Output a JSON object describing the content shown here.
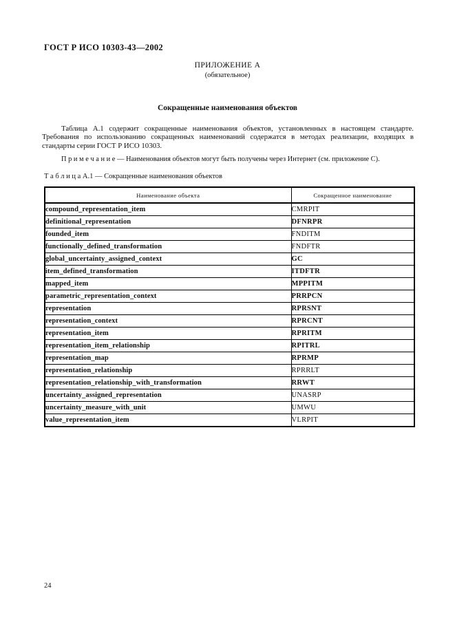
{
  "document": {
    "header": "ГОСТ Р ИСО 10303-43—2002",
    "appendix": {
      "title": "ПРИЛОЖЕНИЕ А",
      "subtitle": "(обязательное)"
    },
    "section_title": "Сокращенные наименования объектов",
    "intro_paragraph": "Таблица А.1 содержит сокращенные наименования объектов, установленных в настоящем стандарте. Требования по использованию сокращенных наименований содержатся в методах реализации, входящих в стандарты серии ГОСТ Р ИСО 10303.",
    "note": "П р и м е ч а н и е — Наименования объектов могут быть получены через Интернет (см. приложение С).",
    "table_caption": "Т а б л и ц а А.1 — Сокращенные наименования объектов",
    "page_number": "24"
  },
  "table": {
    "headers": [
      "Наименование объекта",
      "Сокращенное наименование"
    ],
    "rows": [
      {
        "name": "compound_representation_item",
        "abbr": "CMRPIT",
        "abbr_bold": false
      },
      {
        "name": "definitional_representation",
        "abbr": "DFNRPR",
        "abbr_bold": true
      },
      {
        "name": "founded_item",
        "abbr": "FNDITM",
        "abbr_bold": false
      },
      {
        "name": "functionally_defined_transformation",
        "abbr": "FNDFTR",
        "abbr_bold": false
      },
      {
        "name": "global_uncertainty_assigned_context",
        "abbr": "GC",
        "abbr_bold": true
      },
      {
        "name": "item_defined_transformation",
        "abbr": "ITDFTR",
        "abbr_bold": true
      },
      {
        "name": "mapped_item",
        "abbr": "MPPITM",
        "abbr_bold": true
      },
      {
        "name": "parametric_representation_context",
        "abbr": "PRRPCN",
        "abbr_bold": true
      },
      {
        "name": "representation",
        "abbr": "RPRSNT",
        "abbr_bold": true
      },
      {
        "name": "representation_context",
        "abbr": "RPRCNT",
        "abbr_bold": true
      },
      {
        "name": "representation_item",
        "abbr": "RPRITM",
        "abbr_bold": true
      },
      {
        "name": "representation_item_relationship",
        "abbr": "RPITRL",
        "abbr_bold": true
      },
      {
        "name": "representation_map",
        "abbr": "RPRMP",
        "abbr_bold": true
      },
      {
        "name": "representation_relationship",
        "abbr": "RPRRLT",
        "abbr_bold": false
      },
      {
        "name": "representation_relationship_with_transformation",
        "abbr": "RRWT",
        "abbr_bold": true
      },
      {
        "name": "uncertainty_assigned_representation",
        "abbr": "UNASRP",
        "abbr_bold": false
      },
      {
        "name": "uncertainty_measure_with_unit",
        "abbr": "UMWU",
        "abbr_bold": false
      },
      {
        "name": "value_representation_item",
        "abbr": "VLRPIT",
        "abbr_bold": false
      }
    ]
  },
  "colors": {
    "text": "#111111",
    "background": "#ffffff",
    "border": "#000000"
  }
}
